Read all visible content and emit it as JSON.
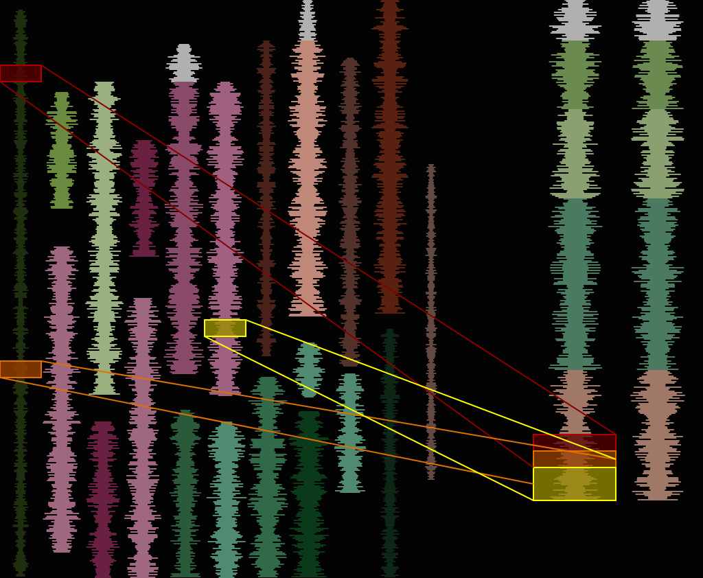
{
  "background": "#030303",
  "tracks": [
    {
      "color": "#3a5a1a"
    },
    {
      "color": "#6a8a40"
    },
    {
      "color": "#9ab080"
    },
    {
      "color": "#6a2040"
    },
    {
      "color": "#b0b0b0"
    },
    {
      "color": "#8a4a6a"
    },
    {
      "color": "#a06080"
    },
    {
      "color": "#904030"
    },
    {
      "color": "#b0b0b0"
    },
    {
      "color": "#c08878"
    },
    {
      "color": "#a06050"
    },
    {
      "color": "#5a2010"
    },
    {
      "color": "#c09080"
    },
    {
      "color": "#a06880"
    },
    {
      "color": "#6a2040"
    },
    {
      "color": "#a06880"
    },
    {
      "color": "#2a5a3a"
    },
    {
      "color": "#508a70"
    },
    {
      "color": "#306a48"
    },
    {
      "color": "#508a70"
    },
    {
      "color": "#0a3a1a"
    },
    {
      "color": "#508a70"
    },
    {
      "color": "#1a4a2a"
    }
  ],
  "overview_segments": [
    {
      "color": "#b0b0b0"
    },
    {
      "color": "#6a8a50"
    },
    {
      "color": "#8aa070"
    },
    {
      "color": "#4a7a60"
    },
    {
      "color": "#a07868"
    }
  ],
  "selections": [
    {
      "name": "red",
      "fill": "#5a0000",
      "stroke": "#b00000"
    },
    {
      "name": "orange",
      "fill": "#9a4000",
      "stroke": "#e07000"
    },
    {
      "name": "yellow",
      "fill": "#9a9000",
      "stroke": "#ffff00"
    }
  ]
}
